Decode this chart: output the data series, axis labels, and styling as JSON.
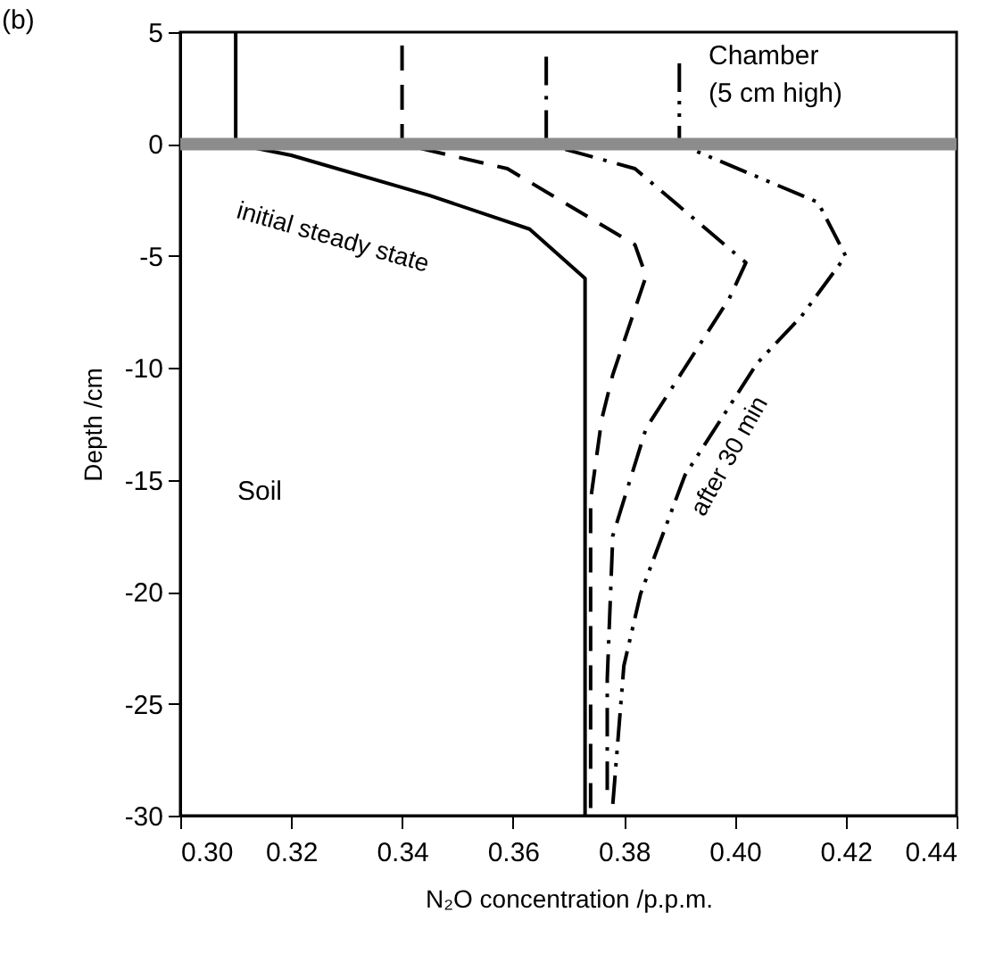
{
  "chart_data": {
    "type": "line",
    "xlabel": "N₂O concentration /p.p.m.",
    "ylabel": "Depth /cm",
    "xlim": [
      0.3,
      0.44
    ],
    "xticks": [
      {
        "value": 0.3,
        "label": "0.30"
      },
      {
        "value": 0.32,
        "label": "0.32"
      },
      {
        "value": 0.34,
        "label": "0.34"
      },
      {
        "value": 0.36,
        "label": "0.36"
      },
      {
        "value": 0.38,
        "label": "0.38"
      },
      {
        "value": 0.4,
        "label": "0.40"
      },
      {
        "value": 0.42,
        "label": "0.42"
      },
      {
        "value": 0.44,
        "label": "0.44"
      }
    ],
    "ylim": [
      -30,
      5
    ],
    "yticks": [
      5,
      0,
      -5,
      -10,
      -15,
      -20,
      -25,
      -30
    ],
    "grid": false,
    "series": [
      {
        "name": "initial steady state",
        "color": "#000000",
        "line_style": "solid",
        "x": [
          0.31,
          0.31,
          0.32,
          0.345,
          0.363,
          0.373,
          0.373
        ],
        "values": [
          5,
          0,
          -0.5,
          -2.3,
          -3.8,
          -6,
          -30
        ]
      },
      {
        "color": "#000000",
        "line_style": "dashed",
        "x": [
          0.34,
          0.34,
          0.359,
          0.382,
          0.384,
          0.378,
          0.376,
          0.374,
          0.374,
          0.374
        ],
        "values": [
          4.4,
          0,
          -1.1,
          -4.5,
          -5.9,
          -10.3,
          -12.3,
          -15.9,
          -25.5,
          -30
        ]
      },
      {
        "color": "#000000",
        "line_style": "dashdot",
        "x": [
          0.366,
          0.366,
          0.382,
          0.402,
          0.399,
          0.384,
          0.378,
          0.377,
          0.377
        ],
        "values": [
          3.9,
          0,
          -1.1,
          -5.3,
          -6.9,
          -12.7,
          -17.5,
          -23.9,
          -29.2
        ]
      },
      {
        "name": "after 30 min",
        "color": "#000000",
        "line_style": "dashdotdot",
        "x": [
          0.39,
          0.39,
          0.415,
          0.42,
          0.412,
          0.404,
          0.391,
          0.383,
          0.38,
          0.378
        ],
        "values": [
          3.6,
          0,
          -2.6,
          -5,
          -7.7,
          -9.8,
          -14.8,
          -20.1,
          -23.3,
          -29.5
        ]
      }
    ],
    "ref_lines": [
      {
        "axis": "y",
        "value": 0,
        "color": "#8c8c8c"
      }
    ],
    "annotations": [
      "Chamber\n(5 cm high)",
      "Soil",
      "(b)"
    ]
  }
}
